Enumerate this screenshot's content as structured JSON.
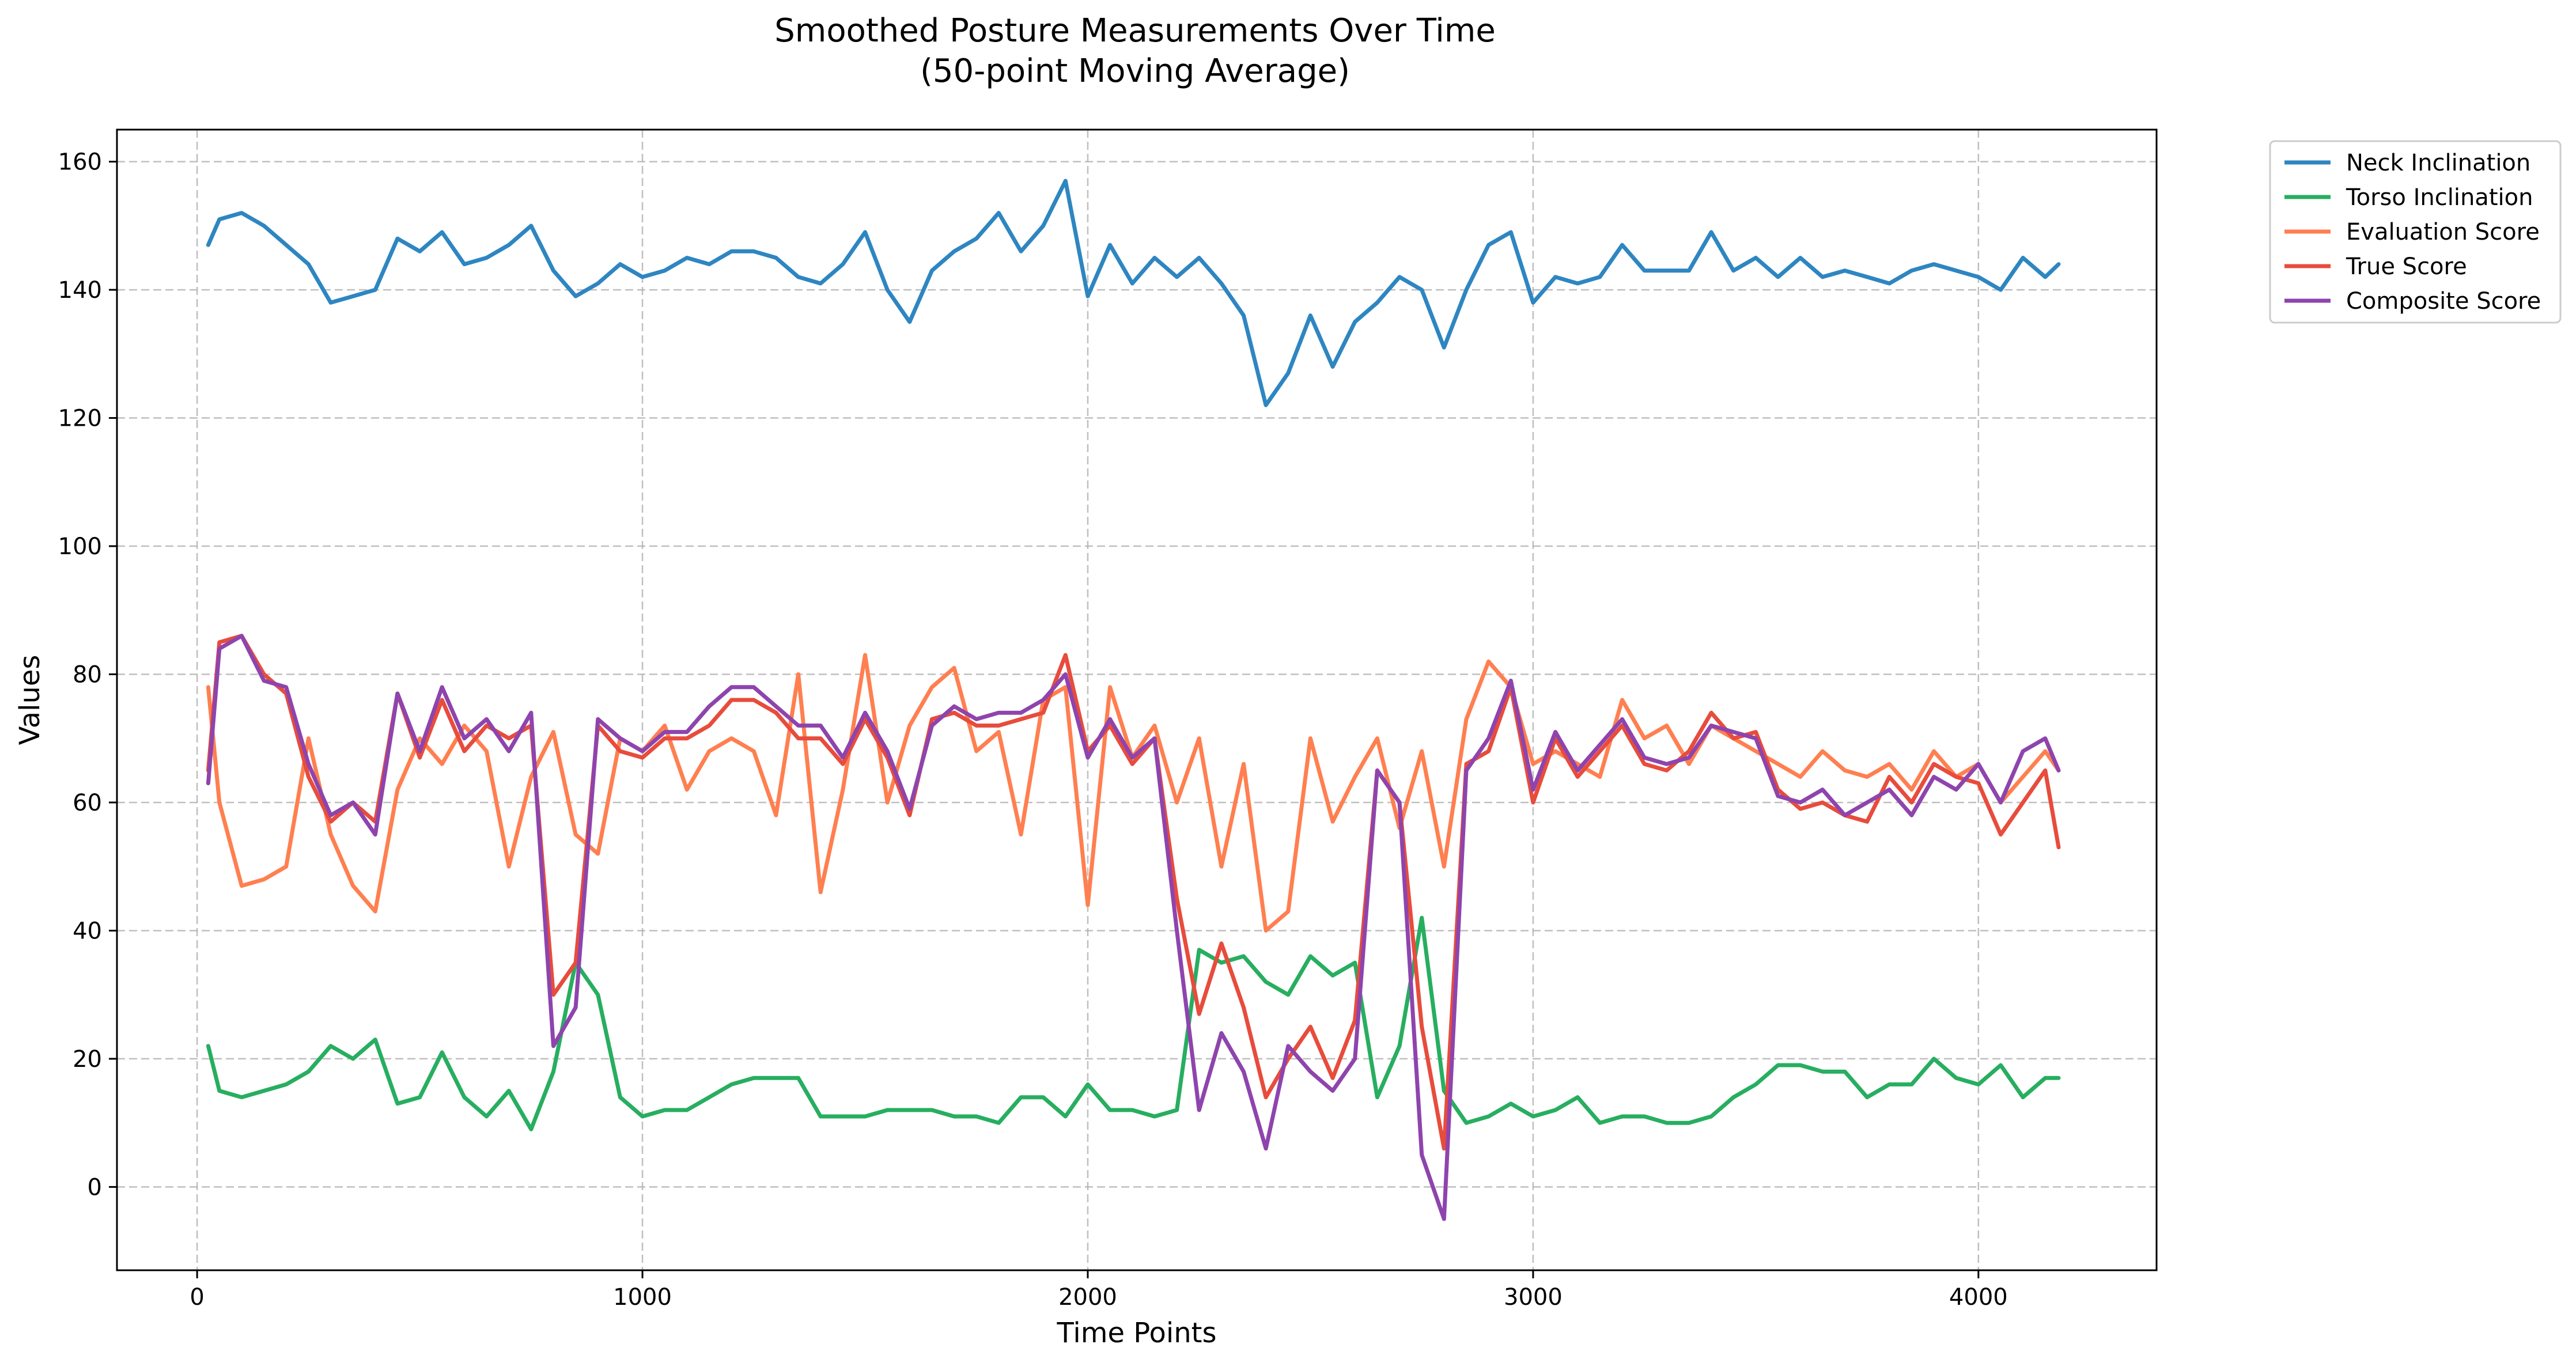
{
  "chart_data": {
    "type": "line",
    "title": "Smoothed Posture Measurements Over Time",
    "subtitle": "(50-point Moving Average)",
    "xlabel": "Time Points",
    "ylabel": "Values",
    "xlim": [
      -180,
      4400
    ],
    "ylim": [
      -13,
      165
    ],
    "xticks": [
      0,
      1000,
      2000,
      3000,
      4000
    ],
    "xtick_labels": [
      "0",
      "1000",
      "2000",
      "3000",
      "4000"
    ],
    "yticks": [
      0,
      20,
      40,
      60,
      80,
      100,
      120,
      140,
      160
    ],
    "ytick_labels": [
      "0",
      "20",
      "40",
      "60",
      "80",
      "100",
      "120",
      "140",
      "160"
    ],
    "grid": true,
    "legend_position": "outside-top-right",
    "series": [
      {
        "name": "Neck Inclination",
        "color": "#2e86c1",
        "x": [
          25,
          50,
          100,
          150,
          200,
          250,
          300,
          350,
          400,
          450,
          500,
          550,
          600,
          650,
          700,
          750,
          800,
          850,
          900,
          950,
          1000,
          1050,
          1100,
          1150,
          1200,
          1250,
          1300,
          1350,
          1400,
          1450,
          1500,
          1550,
          1600,
          1650,
          1700,
          1750,
          1800,
          1850,
          1900,
          1950,
          2000,
          2050,
          2100,
          2150,
          2200,
          2250,
          2300,
          2350,
          2400,
          2450,
          2500,
          2550,
          2600,
          2650,
          2700,
          2750,
          2800,
          2850,
          2900,
          2950,
          3000,
          3050,
          3100,
          3150,
          3200,
          3250,
          3300,
          3350,
          3400,
          3450,
          3500,
          3550,
          3600,
          3650,
          3700,
          3750,
          3800,
          3850,
          3900,
          3950,
          4000,
          4050,
          4100,
          4150,
          4180
        ],
        "y": [
          147,
          151,
          152,
          150,
          147,
          144,
          138,
          139,
          140,
          148,
          146,
          149,
          144,
          145,
          147,
          150,
          143,
          139,
          141,
          144,
          142,
          143,
          145,
          144,
          146,
          146,
          145,
          142,
          141,
          144,
          149,
          140,
          135,
          143,
          146,
          148,
          152,
          146,
          150,
          157,
          139,
          147,
          141,
          145,
          142,
          145,
          141,
          136,
          122,
          127,
          136,
          128,
          135,
          138,
          142,
          140,
          131,
          140,
          147,
          149,
          138,
          142,
          141,
          142,
          147,
          143,
          143,
          143,
          149,
          143,
          145,
          142,
          145,
          142,
          143,
          142,
          141,
          143,
          144,
          143,
          142,
          140,
          145,
          142,
          144
        ]
      },
      {
        "name": "Torso Inclination",
        "color": "#27ae60",
        "x": [
          25,
          50,
          100,
          150,
          200,
          250,
          300,
          350,
          400,
          450,
          500,
          550,
          600,
          650,
          700,
          750,
          800,
          850,
          900,
          950,
          1000,
          1050,
          1100,
          1150,
          1200,
          1250,
          1300,
          1350,
          1400,
          1450,
          1500,
          1550,
          1600,
          1650,
          1700,
          1750,
          1800,
          1850,
          1900,
          1950,
          2000,
          2050,
          2100,
          2150,
          2200,
          2250,
          2300,
          2350,
          2400,
          2450,
          2500,
          2550,
          2600,
          2650,
          2700,
          2750,
          2800,
          2850,
          2900,
          2950,
          3000,
          3050,
          3100,
          3150,
          3200,
          3250,
          3300,
          3350,
          3400,
          3450,
          3500,
          3550,
          3600,
          3650,
          3700,
          3750,
          3800,
          3850,
          3900,
          3950,
          4000,
          4050,
          4100,
          4150,
          4180
        ],
        "y": [
          22,
          15,
          14,
          15,
          16,
          18,
          22,
          20,
          23,
          13,
          14,
          21,
          14,
          11,
          15,
          9,
          18,
          35,
          30,
          14,
          11,
          12,
          12,
          14,
          16,
          17,
          17,
          17,
          11,
          11,
          11,
          12,
          12,
          12,
          11,
          11,
          10,
          14,
          14,
          11,
          16,
          12,
          12,
          11,
          12,
          37,
          35,
          36,
          32,
          30,
          36,
          33,
          35,
          14,
          22,
          42,
          15,
          10,
          11,
          13,
          11,
          12,
          14,
          10,
          11,
          11,
          10,
          10,
          11,
          14,
          16,
          19,
          19,
          18,
          18,
          14,
          16,
          16,
          20,
          17,
          16,
          19,
          14,
          17,
          17
        ]
      },
      {
        "name": "Evaluation Score",
        "color": "#ff7f50",
        "x": [
          25,
          50,
          100,
          150,
          200,
          250,
          300,
          350,
          400,
          450,
          500,
          550,
          600,
          650,
          700,
          750,
          800,
          850,
          900,
          950,
          1000,
          1050,
          1100,
          1150,
          1200,
          1250,
          1300,
          1350,
          1400,
          1450,
          1500,
          1550,
          1600,
          1650,
          1700,
          1750,
          1800,
          1850,
          1900,
          1950,
          2000,
          2050,
          2100,
          2150,
          2200,
          2250,
          2300,
          2350,
          2400,
          2450,
          2500,
          2550,
          2600,
          2650,
          2700,
          2750,
          2800,
          2850,
          2900,
          2950,
          3000,
          3050,
          3100,
          3150,
          3200,
          3250,
          3300,
          3350,
          3400,
          3450,
          3500,
          3550,
          3600,
          3650,
          3700,
          3750,
          3800,
          3850,
          3900,
          3950,
          4000,
          4050,
          4100,
          4150,
          4180
        ],
        "y": [
          78,
          60,
          47,
          48,
          50,
          70,
          55,
          47,
          43,
          62,
          70,
          66,
          72,
          68,
          50,
          64,
          71,
          55,
          52,
          70,
          68,
          72,
          62,
          68,
          70,
          68,
          58,
          80,
          46,
          62,
          83,
          60,
          72,
          78,
          81,
          68,
          71,
          55,
          76,
          78,
          44,
          78,
          67,
          72,
          60,
          70,
          50,
          66,
          40,
          43,
          70,
          57,
          64,
          70,
          56,
          68,
          50,
          73,
          82,
          78,
          66,
          68,
          66,
          64,
          76,
          70,
          72,
          66,
          72,
          70,
          68,
          66,
          64,
          68,
          65,
          64,
          66,
          62,
          68,
          64,
          66,
          60,
          64,
          68,
          65
        ]
      },
      {
        "name": "True Score",
        "color": "#e74c3c",
        "x": [
          25,
          50,
          100,
          150,
          200,
          250,
          300,
          350,
          400,
          450,
          500,
          550,
          600,
          650,
          700,
          750,
          800,
          850,
          900,
          950,
          1000,
          1050,
          1100,
          1150,
          1200,
          1250,
          1300,
          1350,
          1400,
          1450,
          1500,
          1550,
          1600,
          1650,
          1700,
          1750,
          1800,
          1850,
          1900,
          1950,
          2000,
          2050,
          2100,
          2150,
          2200,
          2250,
          2300,
          2350,
          2400,
          2450,
          2500,
          2550,
          2600,
          2650,
          2700,
          2750,
          2800,
          2850,
          2900,
          2950,
          3000,
          3050,
          3100,
          3150,
          3200,
          3250,
          3300,
          3350,
          3400,
          3450,
          3500,
          3550,
          3600,
          3650,
          3700,
          3750,
          3800,
          3850,
          3900,
          3950,
          4000,
          4050,
          4100,
          4150,
          4180
        ],
        "y": [
          65,
          85,
          86,
          80,
          77,
          64,
          57,
          60,
          57,
          77,
          67,
          76,
          68,
          72,
          70,
          72,
          30,
          35,
          72,
          68,
          67,
          70,
          70,
          72,
          76,
          76,
          74,
          70,
          70,
          66,
          73,
          67,
          58,
          73,
          74,
          72,
          72,
          73,
          74,
          83,
          68,
          72,
          66,
          70,
          45,
          27,
          38,
          28,
          14,
          20,
          25,
          17,
          26,
          65,
          60,
          25,
          6,
          66,
          68,
          78,
          60,
          70,
          64,
          68,
          72,
          66,
          65,
          68,
          74,
          70,
          71,
          62,
          59,
          60,
          58,
          57,
          64,
          60,
          66,
          64,
          63,
          55,
          60,
          65,
          53
        ]
      },
      {
        "name": "Composite Score",
        "color": "#8e44ad",
        "x": [
          25,
          50,
          100,
          150,
          200,
          250,
          300,
          350,
          400,
          450,
          500,
          550,
          600,
          650,
          700,
          750,
          800,
          850,
          900,
          950,
          1000,
          1050,
          1100,
          1150,
          1200,
          1250,
          1300,
          1350,
          1400,
          1450,
          1500,
          1550,
          1600,
          1650,
          1700,
          1750,
          1800,
          1850,
          1900,
          1950,
          2000,
          2050,
          2100,
          2150,
          2200,
          2250,
          2300,
          2350,
          2400,
          2450,
          2500,
          2550,
          2600,
          2650,
          2700,
          2750,
          2800,
          2850,
          2900,
          2950,
          3000,
          3050,
          3100,
          3150,
          3200,
          3250,
          3300,
          3350,
          3400,
          3450,
          3500,
          3550,
          3600,
          3650,
          3700,
          3750,
          3800,
          3850,
          3900,
          3950,
          4000,
          4050,
          4100,
          4150,
          4180
        ],
        "y": [
          63,
          84,
          86,
          79,
          78,
          66,
          58,
          60,
          55,
          77,
          68,
          78,
          70,
          73,
          68,
          74,
          22,
          28,
          73,
          70,
          68,
          71,
          71,
          75,
          78,
          78,
          75,
          72,
          72,
          67,
          74,
          68,
          59,
          72,
          75,
          73,
          74,
          74,
          76,
          80,
          67,
          73,
          67,
          70,
          40,
          12,
          24,
          18,
          6,
          22,
          18,
          15,
          20,
          65,
          60,
          5,
          -5,
          65,
          70,
          79,
          62,
          71,
          65,
          69,
          73,
          67,
          66,
          67,
          72,
          71,
          70,
          61,
          60,
          62,
          58,
          60,
          62,
          58,
          64,
          62,
          66,
          60,
          68,
          70,
          65
        ]
      }
    ]
  }
}
